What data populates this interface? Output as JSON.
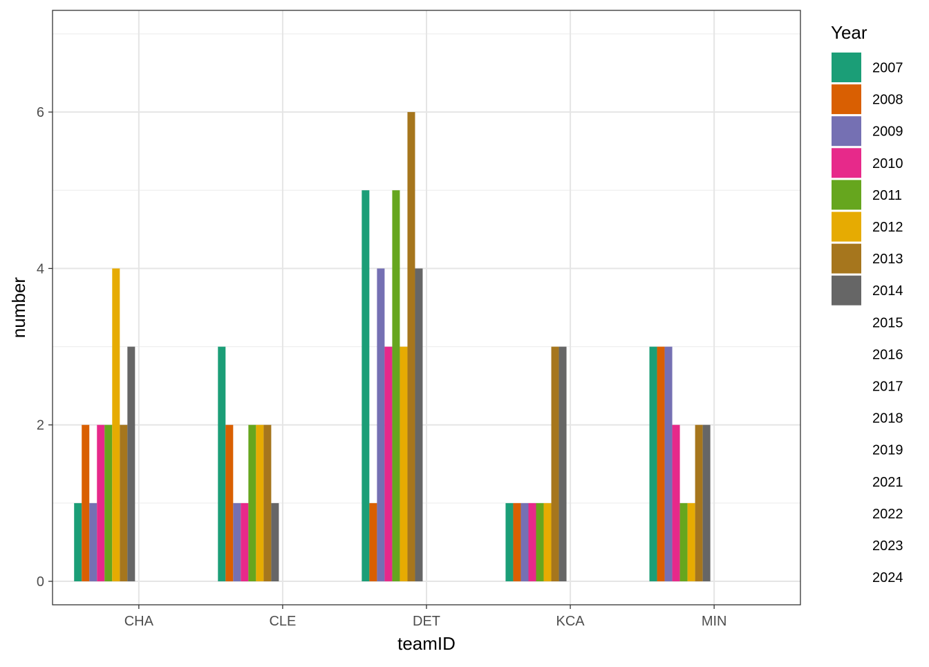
{
  "chart_data": {
    "type": "bar",
    "xlabel": "teamID",
    "ylabel": "number",
    "ylim": [
      -0.3,
      7.3
    ],
    "yticks": [
      0,
      2,
      4,
      6
    ],
    "grid": true,
    "legend_position": "right",
    "legend_title": "Year",
    "categories": [
      "CHA",
      "CLE",
      "DET",
      "KCA",
      "MIN"
    ],
    "series": [
      {
        "name": "2007",
        "color": "#1B9E77",
        "values": [
          1,
          3,
          5,
          1,
          3
        ]
      },
      {
        "name": "2008",
        "color": "#D95F02",
        "values": [
          2,
          2,
          1,
          1,
          3
        ]
      },
      {
        "name": "2009",
        "color": "#7570B3",
        "values": [
          1,
          1,
          4,
          1,
          3
        ]
      },
      {
        "name": "2010",
        "color": "#E7298A",
        "values": [
          2,
          1,
          3,
          1,
          2
        ]
      },
      {
        "name": "2011",
        "color": "#66A61E",
        "values": [
          2,
          2,
          5,
          1,
          1
        ]
      },
      {
        "name": "2012",
        "color": "#E6AB02",
        "values": [
          4,
          2,
          3,
          1,
          1
        ]
      },
      {
        "name": "2013",
        "color": "#A6761D",
        "values": [
          2,
          2,
          6,
          3,
          2
        ]
      },
      {
        "name": "2014",
        "color": "#666666",
        "values": [
          3,
          1,
          4,
          3,
          2
        ]
      },
      {
        "name": "2015",
        "color": null,
        "values": [
          null,
          null,
          null,
          null,
          null
        ]
      },
      {
        "name": "2016",
        "color": null,
        "values": [
          null,
          null,
          null,
          null,
          null
        ]
      },
      {
        "name": "2017",
        "color": null,
        "values": [
          null,
          null,
          null,
          null,
          null
        ]
      },
      {
        "name": "2018",
        "color": null,
        "values": [
          null,
          null,
          null,
          null,
          null
        ]
      },
      {
        "name": "2019",
        "color": null,
        "values": [
          null,
          null,
          null,
          null,
          null
        ]
      },
      {
        "name": "2021",
        "color": null,
        "values": [
          null,
          null,
          null,
          null,
          null
        ]
      },
      {
        "name": "2022",
        "color": null,
        "values": [
          null,
          null,
          null,
          null,
          null
        ]
      },
      {
        "name": "2023",
        "color": null,
        "values": [
          null,
          null,
          null,
          null,
          null
        ]
      },
      {
        "name": "2024",
        "color": null,
        "values": [
          null,
          null,
          null,
          null,
          null
        ]
      }
    ]
  }
}
